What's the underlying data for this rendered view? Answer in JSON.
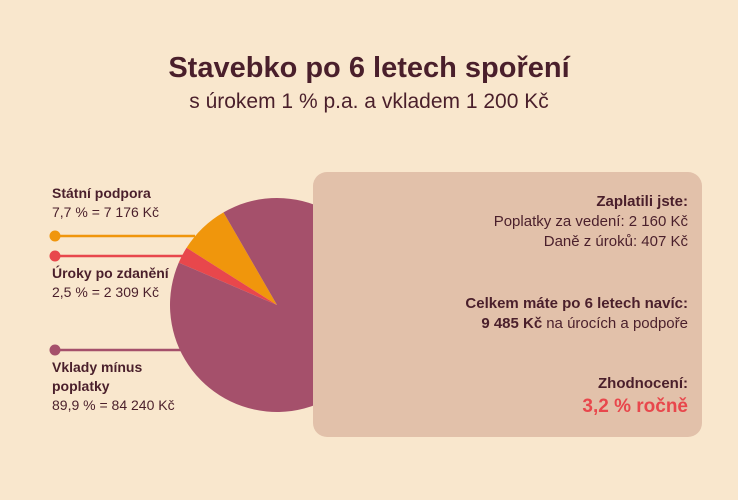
{
  "header": {
    "title": "Stavebko po 6 letech spoření",
    "subtitle": "s úrokem 1 % p.a. a vkladem 1 200 Kč"
  },
  "chart_data": {
    "type": "pie",
    "categories": [
      "Státní podpora",
      "Úroky po zdanění",
      "Vklady mínus poplatky"
    ],
    "values": [
      7.7,
      2.5,
      89.9
    ],
    "value_labels": [
      "7,7 % = 7 176 Kč",
      "2,5 % = 2 309 Kč",
      "89,9 % = 84 240 Kč"
    ],
    "colors": [
      "#f0960c",
      "#e8474c",
      "#a5506b"
    ]
  },
  "summary": {
    "paid_heading": "Zaplatili jste:",
    "paid_items": [
      "Poplatky za vedení: 2 160 Kč",
      "Daně z úroků: 407 Kč"
    ],
    "total_heading": "Celkem máte po 6 letech navíc:",
    "total_amount": "9 485 Kč",
    "total_text": "na úrocích a podpoře",
    "rating_heading": "Zhodnocení:",
    "rating_value": "3,2 % ročně"
  }
}
